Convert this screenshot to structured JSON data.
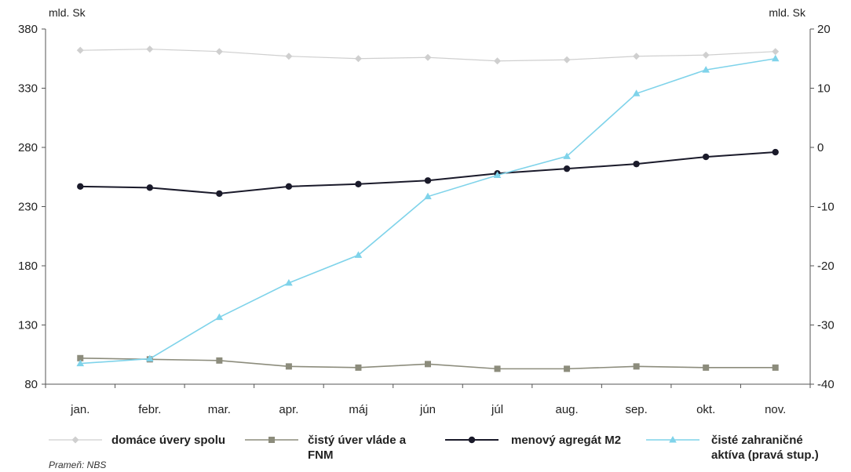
{
  "chart_data": {
    "type": "line",
    "left_unit": "mld. Sk",
    "right_unit": "mld. Sk",
    "categories": [
      "jan.",
      "febr.",
      "mar.",
      "apr.",
      "máj",
      "jún",
      "júl",
      "aug.",
      "sep.",
      "okt.",
      "nov."
    ],
    "y_left": {
      "min": 80,
      "max": 380,
      "ticks": [
        "80",
        "130",
        "180",
        "230",
        "280",
        "330",
        "380"
      ]
    },
    "y_right": {
      "min": -40,
      "max": 20,
      "ticks": [
        "-40",
        "-30",
        "-20",
        "-10",
        "0",
        "10",
        "20"
      ]
    },
    "series": [
      {
        "name": "domáce úvery spolu",
        "axis": "left",
        "marker": "diamond",
        "color": "#cfcfcf",
        "values": [
          362,
          363,
          361,
          357,
          355,
          356,
          353,
          354,
          357,
          358,
          361
        ]
      },
      {
        "name": "čistý úver vláde a FNM",
        "axis": "left",
        "marker": "square",
        "color": "#8c8c7c",
        "values": [
          102,
          101,
          100,
          95,
          94,
          97,
          93,
          93,
          95,
          94,
          94
        ]
      },
      {
        "name": "menový agregát M2",
        "axis": "left",
        "marker": "circle",
        "color": "#1a1a2a",
        "values": [
          247,
          246,
          241,
          247,
          249,
          252,
          258,
          262,
          266,
          272,
          276
        ]
      },
      {
        "name": "čisté zahraničné aktíva (pravá stup.)",
        "axis": "right",
        "marker": "triangle",
        "color": "#7fd3ea",
        "values": [
          -36.5,
          -35.7,
          -28.7,
          -22.9,
          -18.2,
          -8.3,
          -4.7,
          -1.5,
          9.1,
          13.1,
          15.0
        ]
      }
    ],
    "source": "Prameň: NBS",
    "grid": false,
    "legend_position": "bottom"
  }
}
